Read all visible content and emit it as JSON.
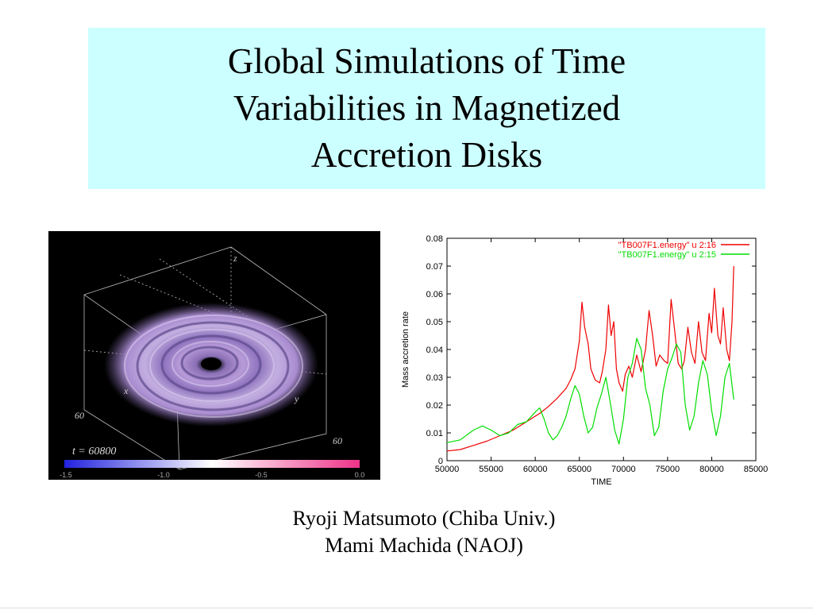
{
  "slide": {
    "title": "Global Simulations of Time\nVariabilities in Magnetized\nAccretion Disks",
    "authors": [
      "Ryoji Matsumoto (Chiba Univ.)",
      "Mami Machida (NAOJ)"
    ]
  },
  "simulation_image": {
    "time_label": "t = 60800",
    "axis_labels": {
      "z": "z",
      "y": "y",
      "x": "x"
    },
    "corner_ticks": [
      "60",
      "60"
    ],
    "colorbar_ticks": [
      "-1.5",
      "-1.0",
      "-0.5",
      "0.0"
    ],
    "colorbar_colors": [
      "#2222dd",
      "#ffffff",
      "#ee3388"
    ]
  },
  "chart_data": {
    "type": "line",
    "xlabel": "TIME",
    "ylabel": "Mass accretion rate",
    "xlim": [
      50000,
      85000
    ],
    "ylim": [
      0,
      0.08
    ],
    "xticks": [
      50000,
      55000,
      60000,
      65000,
      70000,
      75000,
      80000,
      85000
    ],
    "yticks": [
      0,
      0.01,
      0.02,
      0.03,
      0.04,
      0.05,
      0.06,
      0.07,
      0.08
    ],
    "grid": false,
    "legend_position": "top-right",
    "series": [
      {
        "name": "\"TB007F1.energy\" u 2:16",
        "color": "#ee0000",
        "x": [
          50000,
          51500,
          53000,
          54500,
          56000,
          57500,
          58500,
          59500,
          60500,
          61500,
          62500,
          63500,
          64000,
          64500,
          65000,
          65300,
          65600,
          66000,
          66300,
          66800,
          67300,
          67600,
          68000,
          68300,
          68600,
          68900,
          69200,
          69500,
          69900,
          70200,
          70600,
          71000,
          71500,
          72000,
          72500,
          72900,
          73300,
          73700,
          74100,
          74600,
          75000,
          75400,
          75800,
          76200,
          76600,
          76900,
          77300,
          77700,
          78100,
          78500,
          78900,
          79300,
          79700,
          80000,
          80300,
          80700,
          81000,
          81300,
          81700,
          82000,
          82300,
          82500
        ],
        "values": [
          0.0035,
          0.004,
          0.0055,
          0.007,
          0.009,
          0.011,
          0.013,
          0.015,
          0.017,
          0.0195,
          0.0225,
          0.026,
          0.029,
          0.033,
          0.043,
          0.057,
          0.048,
          0.042,
          0.033,
          0.029,
          0.028,
          0.032,
          0.04,
          0.056,
          0.045,
          0.05,
          0.033,
          0.028,
          0.025,
          0.031,
          0.034,
          0.03,
          0.038,
          0.032,
          0.04,
          0.054,
          0.045,
          0.034,
          0.038,
          0.036,
          0.035,
          0.058,
          0.047,
          0.035,
          0.033,
          0.036,
          0.048,
          0.039,
          0.035,
          0.05,
          0.039,
          0.036,
          0.053,
          0.046,
          0.062,
          0.045,
          0.042,
          0.055,
          0.04,
          0.036,
          0.05,
          0.07
        ]
      },
      {
        "name": "\"TB007F1.energy\" u 2:15",
        "color": "#00dd00",
        "x": [
          50000,
          51500,
          53000,
          54000,
          55000,
          56000,
          57000,
          58000,
          59000,
          60000,
          60500,
          61000,
          61500,
          62000,
          62500,
          63000,
          63500,
          64000,
          64500,
          65000,
          65500,
          66000,
          66500,
          67000,
          67500,
          68000,
          68500,
          69000,
          69500,
          70000,
          70500,
          71000,
          71500,
          72000,
          72500,
          73000,
          73500,
          74000,
          74500,
          75000,
          75500,
          76000,
          76500,
          77000,
          77500,
          78000,
          78500,
          79000,
          79500,
          80000,
          80500,
          81000,
          81500,
          82000,
          82500
        ],
        "values": [
          0.0065,
          0.0075,
          0.011,
          0.0125,
          0.011,
          0.009,
          0.01,
          0.013,
          0.014,
          0.0175,
          0.019,
          0.015,
          0.01,
          0.0075,
          0.009,
          0.012,
          0.016,
          0.022,
          0.027,
          0.024,
          0.016,
          0.01,
          0.012,
          0.019,
          0.024,
          0.03,
          0.021,
          0.011,
          0.006,
          0.015,
          0.03,
          0.035,
          0.044,
          0.04,
          0.026,
          0.02,
          0.009,
          0.012,
          0.025,
          0.033,
          0.037,
          0.042,
          0.039,
          0.02,
          0.011,
          0.016,
          0.028,
          0.036,
          0.031,
          0.018,
          0.009,
          0.016,
          0.03,
          0.035,
          0.022
        ]
      }
    ]
  }
}
